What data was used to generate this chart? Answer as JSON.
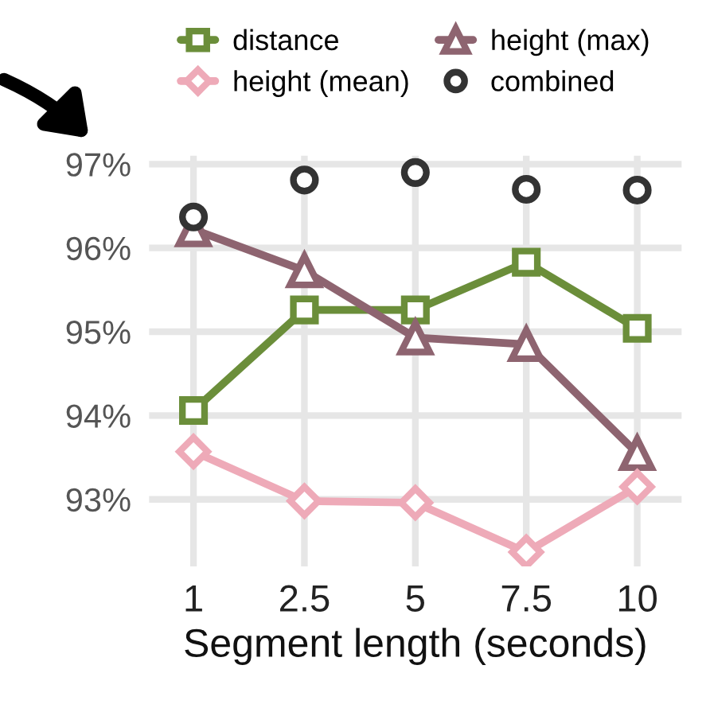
{
  "chart_data": {
    "type": "line",
    "xlabel": "Segment length (seconds)",
    "categories": [
      "1",
      "2.5",
      "5",
      "7.5",
      "10"
    ],
    "series": [
      {
        "name": "distance",
        "color": "#6b8e3a",
        "marker": "square",
        "values": [
          94.06,
          95.26,
          95.26,
          95.83,
          95.04
        ]
      },
      {
        "name": "height (max)",
        "color": "#8e6470",
        "marker": "triangle",
        "values": [
          96.22,
          95.73,
          94.93,
          94.85,
          93.55
        ]
      },
      {
        "name": "height (mean)",
        "color": "#eeaab8",
        "marker": "diamond",
        "values": [
          93.57,
          92.98,
          92.96,
          92.37,
          93.15
        ]
      },
      {
        "name": "combined",
        "type": "scatter",
        "color": "#333333",
        "marker": "circle",
        "values": [
          96.37,
          96.81,
          96.9,
          96.7,
          96.69
        ]
      }
    ],
    "ylim": [
      92.2,
      97.1
    ],
    "yticks": [
      {
        "value": 93,
        "label": "93%"
      },
      {
        "value": 94,
        "label": "94%"
      },
      {
        "value": 95,
        "label": "95%"
      },
      {
        "value": 96,
        "label": "96%"
      },
      {
        "value": 97,
        "label": "97%"
      }
    ],
    "grid": true,
    "legend": "top"
  }
}
